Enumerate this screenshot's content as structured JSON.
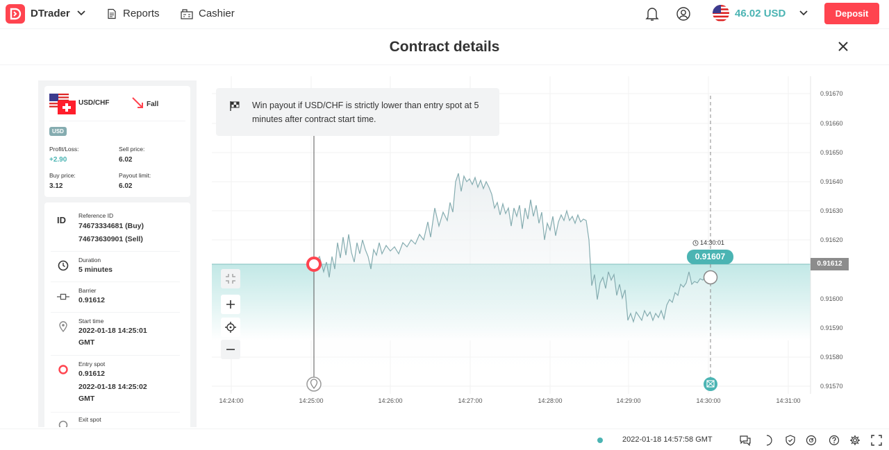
{
  "header": {
    "brand": "DTrader",
    "nav": [
      {
        "label": "Reports",
        "icon": "reports-icon"
      },
      {
        "label": "Cashier",
        "icon": "cashier-icon"
      }
    ],
    "balance": "46.02 USD",
    "deposit_label": "Deposit"
  },
  "page": {
    "title": "Contract details"
  },
  "contract": {
    "symbol": "USD/CHF",
    "trade_type": "Fall",
    "currency": "USD",
    "profit_loss_label": "Profit/Loss:",
    "profit_loss": "+2.90",
    "sell_price_label": "Sell price:",
    "sell_price": "6.02",
    "buy_price_label": "Buy price:",
    "buy_price": "3.12",
    "payout_limit_label": "Payout limit:",
    "payout_limit": "6.02"
  },
  "details": {
    "reference": {
      "label": "Reference ID",
      "buy": "74673334681 (Buy)",
      "sell": "74673630901 (Sell)",
      "icon_text": "ID"
    },
    "duration": {
      "label": "Duration",
      "value": "5 minutes"
    },
    "barrier": {
      "label": "Barrier",
      "value": "0.91612"
    },
    "start_time": {
      "label": "Start time",
      "value_line1": "2022-01-18 14:25:01",
      "value_line2": "GMT"
    },
    "entry_spot": {
      "label": "Entry spot",
      "value": "0.91612",
      "time_line1": "2022-01-18 14:25:02",
      "time_line2": "GMT"
    },
    "exit_spot": {
      "label": "Exit spot"
    }
  },
  "chart": {
    "tooltip": "Win payout if USD/CHF is strictly lower than entry spot at 5 minutes after contract start time.",
    "current_price": "0.91607",
    "end_time": "14:30:01",
    "barrier_price": "0.91612",
    "y_ticks": [
      "0.91670",
      "0.91660",
      "0.91650",
      "0.91640",
      "0.91630",
      "0.91620",
      "0.91600",
      "0.91590",
      "0.91580",
      "0.91570"
    ],
    "x_ticks": [
      "14:24:00",
      "14:25:00",
      "14:26:00",
      "14:27:00",
      "14:28:00",
      "14:29:00",
      "14:30:00",
      "14:31:00"
    ]
  },
  "footer": {
    "datetime": "2022-01-18 14:57:58 GMT"
  },
  "colors": {
    "accent": "#ff444f",
    "profit": "#4bb4b3"
  }
}
